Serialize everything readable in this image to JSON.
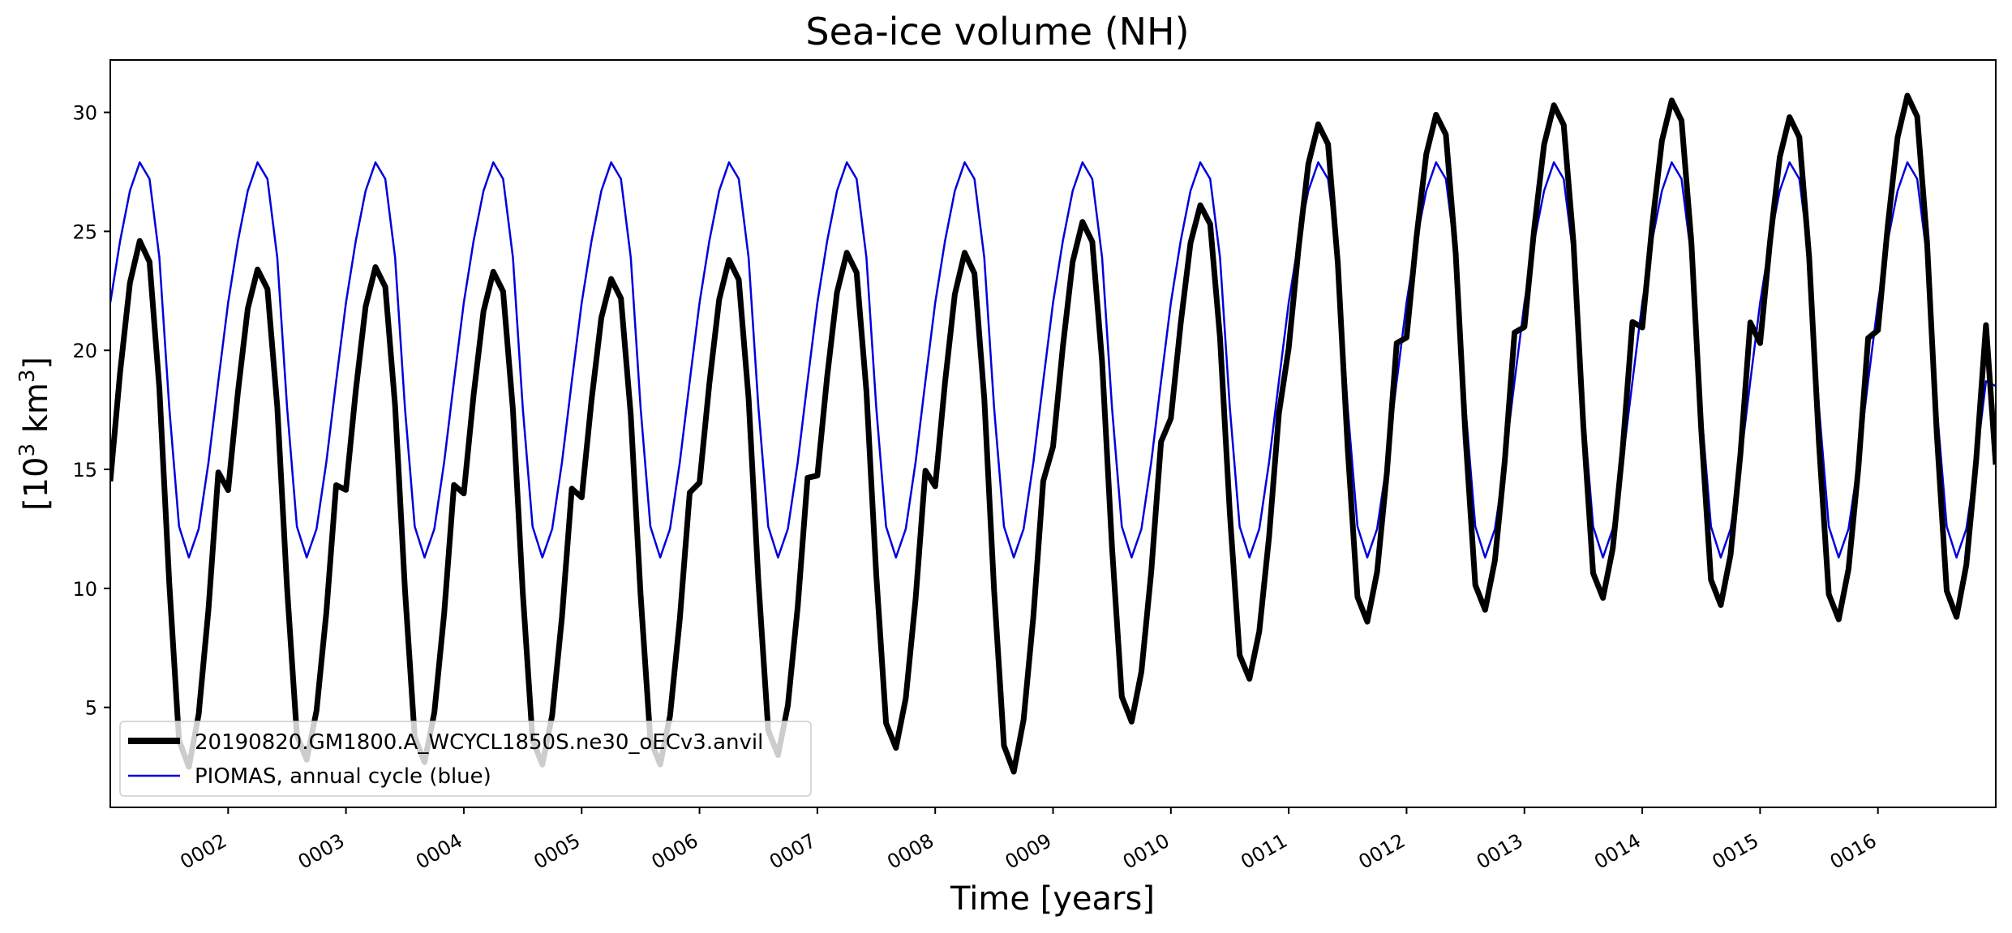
{
  "chart_data": {
    "type": "line",
    "title": "Sea-ice volume (NH)",
    "xlabel": "Time [years]",
    "ylabel_base": "[10",
    "ylabel_exp1": "3",
    "ylabel_unit": " km",
    "ylabel_exp2": "3",
    "ylabel_close": "]",
    "xlim": [
      1.0,
      17.0
    ],
    "ylim": [
      0.8,
      32.2
    ],
    "yticks": [
      5,
      10,
      15,
      20,
      25,
      30
    ],
    "xticks": [
      {
        "value": 2,
        "label": "0002"
      },
      {
        "value": 3,
        "label": "0003"
      },
      {
        "value": 4,
        "label": "0004"
      },
      {
        "value": 5,
        "label": "0005"
      },
      {
        "value": 6,
        "label": "0006"
      },
      {
        "value": 7,
        "label": "0007"
      },
      {
        "value": 8,
        "label": "0008"
      },
      {
        "value": 9,
        "label": "0009"
      },
      {
        "value": 10,
        "label": "0010"
      },
      {
        "value": 11,
        "label": "0011"
      },
      {
        "value": 12,
        "label": "0012"
      },
      {
        "value": 13,
        "label": "0013"
      },
      {
        "value": 14,
        "label": "0014"
      },
      {
        "value": 15,
        "label": "0015"
      },
      {
        "value": 16,
        "label": "0016"
      }
    ],
    "legend_position": "lower-left",
    "series": [
      {
        "name": "20190820.GM1800.A_WCYCL1850S.ne30_oECv3.anvil",
        "color": "#000000",
        "width": "thick",
        "annual": [
          {
            "max": 24.6,
            "min": 2.5
          },
          {
            "max": 23.4,
            "min": 2.8
          },
          {
            "max": 23.5,
            "min": 2.7
          },
          {
            "max": 23.3,
            "min": 2.6
          },
          {
            "max": 23.0,
            "min": 2.6
          },
          {
            "max": 23.8,
            "min": 3.0
          },
          {
            "max": 24.1,
            "min": 3.3
          },
          {
            "max": 24.1,
            "min": 2.3
          },
          {
            "max": 25.4,
            "min": 4.4
          },
          {
            "max": 26.1,
            "min": 6.2
          },
          {
            "max": 29.5,
            "min": 8.6
          },
          {
            "max": 29.9,
            "min": 9.1
          },
          {
            "max": 30.3,
            "min": 9.6
          },
          {
            "max": 30.5,
            "min": 9.3
          },
          {
            "max": 29.8,
            "min": 8.7
          },
          {
            "max": 30.7,
            "min": 8.8
          }
        ],
        "start_value": 14.5,
        "end_value": 15.2
      },
      {
        "name": "PIOMAS, annual cycle (blue)",
        "color": "#0000dd",
        "width": "thin",
        "monthly_cycle": [
          22.0,
          24.6,
          26.7,
          27.9,
          27.2,
          23.9,
          17.6,
          12.6,
          11.3,
          12.5,
          15.3,
          18.7
        ],
        "end_value": 18.5
      }
    ]
  }
}
